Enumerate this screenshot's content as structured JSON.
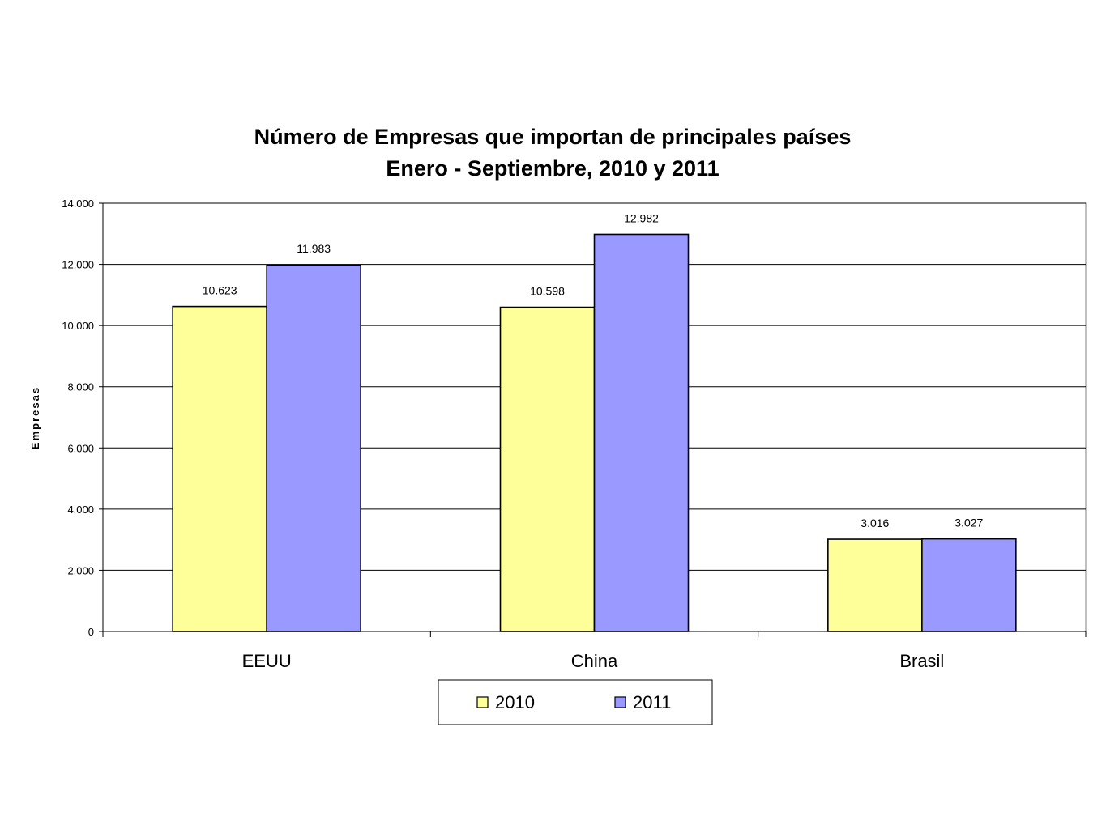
{
  "chart_data": {
    "type": "bar",
    "title": "Número de Empresas que importan de principales países",
    "subtitle": "Enero - Septiembre, 2010 y 2011",
    "xlabel": "",
    "ylabel": "Empresas",
    "categories": [
      "EEUU",
      "China",
      "Brasil"
    ],
    "series": [
      {
        "name": "2010",
        "values": [
          10623,
          10598,
          3016
        ],
        "labels": [
          "10.623",
          "10.598",
          "3.016"
        ],
        "color": "#ffff99"
      },
      {
        "name": "2011",
        "values": [
          11983,
          12982,
          3027
        ],
        "labels": [
          "11.983",
          "12.982",
          "3.027"
        ],
        "color": "#9999ff"
      }
    ],
    "ylim": [
      0,
      14000
    ],
    "yticks": [
      0,
      2000,
      4000,
      6000,
      8000,
      10000,
      12000,
      14000
    ],
    "ytick_labels": [
      "0",
      "2.000",
      "4.000",
      "6.000",
      "8.000",
      "10.000",
      "12.000",
      "14.000"
    ],
    "grid": true,
    "legend": "bottom"
  }
}
